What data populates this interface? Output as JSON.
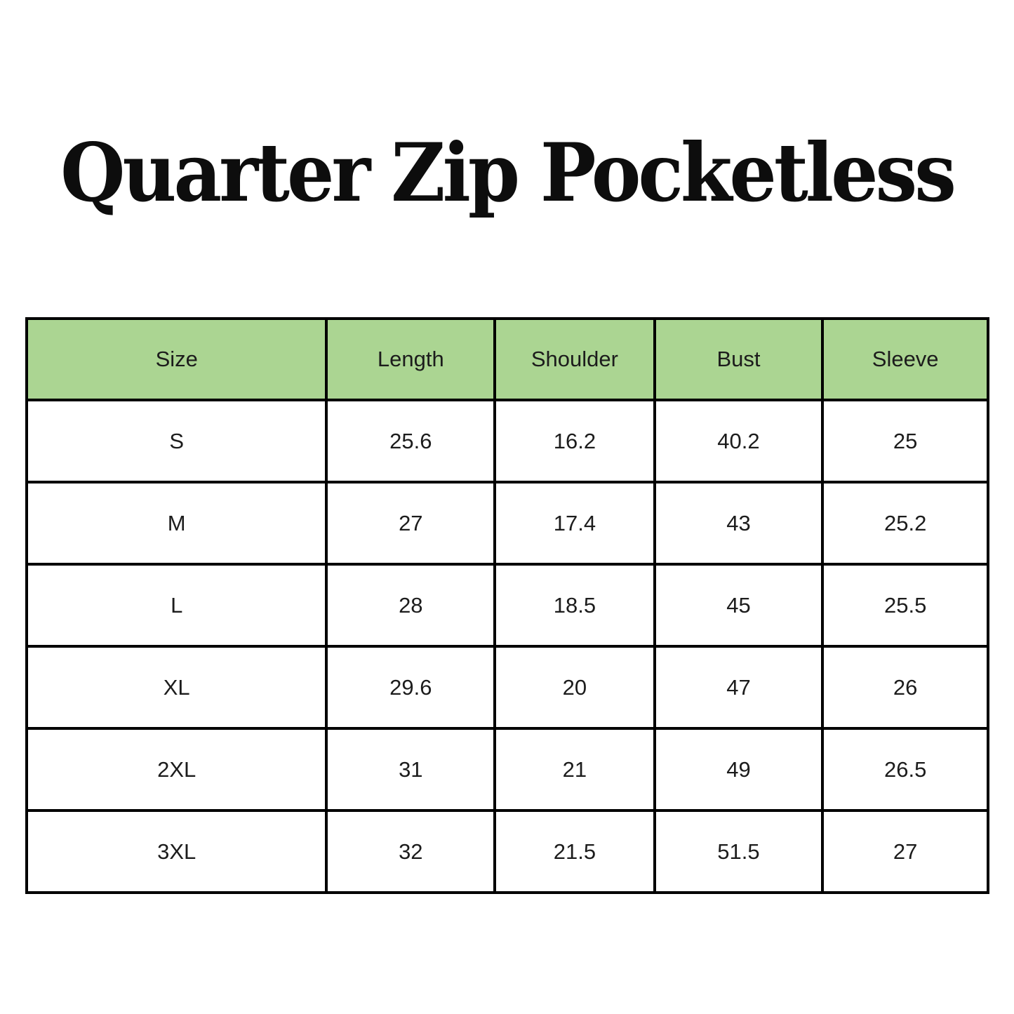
{
  "title": "Quarter Zip Pocketless",
  "colors": {
    "header_bg": "#abd592",
    "border": "#000000",
    "background": "#ffffff"
  },
  "chart_data": {
    "type": "table",
    "title": "Quarter Zip Pocketless",
    "columns": [
      "Size",
      "Length",
      "Shoulder",
      "Bust",
      "Sleeve"
    ],
    "rows": [
      [
        "S",
        "25.6",
        "16.2",
        "40.2",
        "25"
      ],
      [
        "M",
        "27",
        "17.4",
        "43",
        "25.2"
      ],
      [
        "L",
        "28",
        "18.5",
        "45",
        "25.5"
      ],
      [
        "XL",
        "29.6",
        "20",
        "47",
        "26"
      ],
      [
        "2XL",
        "31",
        "21",
        "49",
        "26.5"
      ],
      [
        "3XL",
        "32",
        "21.5",
        "51.5",
        "27"
      ]
    ]
  }
}
